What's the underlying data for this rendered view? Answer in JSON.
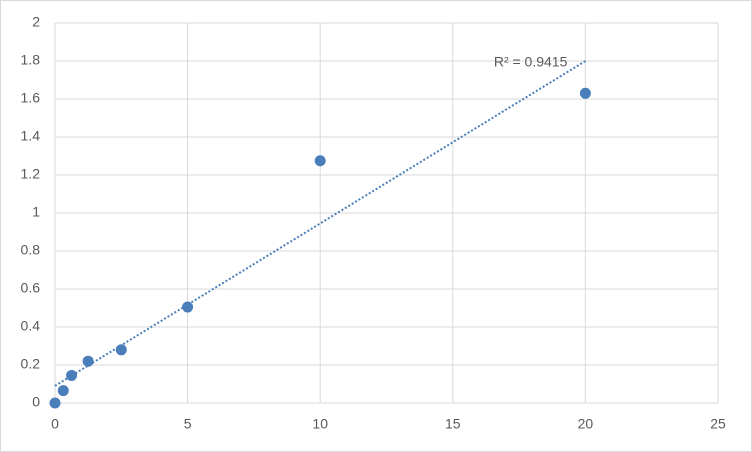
{
  "chart_data": {
    "type": "scatter",
    "series": [
      {
        "color": "#4a7ebb",
        "x": [
          0,
          0.3125,
          0.625,
          1.25,
          2.5,
          5,
          10,
          20
        ],
        "values": [
          0,
          0.065,
          0.145,
          0.22,
          0.28,
          0.505,
          1.275,
          1.63
        ]
      }
    ],
    "trendline": {
      "label": "R² = 0.9415",
      "x": [
        0,
        20
      ],
      "y": [
        0.09,
        1.8
      ],
      "style": "dotted"
    },
    "xlim": [
      0,
      25
    ],
    "xticks": [
      0,
      5,
      10,
      15,
      20,
      25
    ],
    "ylim": [
      0,
      2
    ],
    "yticks": [
      0,
      0.2,
      0.4,
      0.6,
      0.8,
      1,
      1.2,
      1.4,
      1.6,
      1.8,
      2
    ],
    "grid": true
  }
}
